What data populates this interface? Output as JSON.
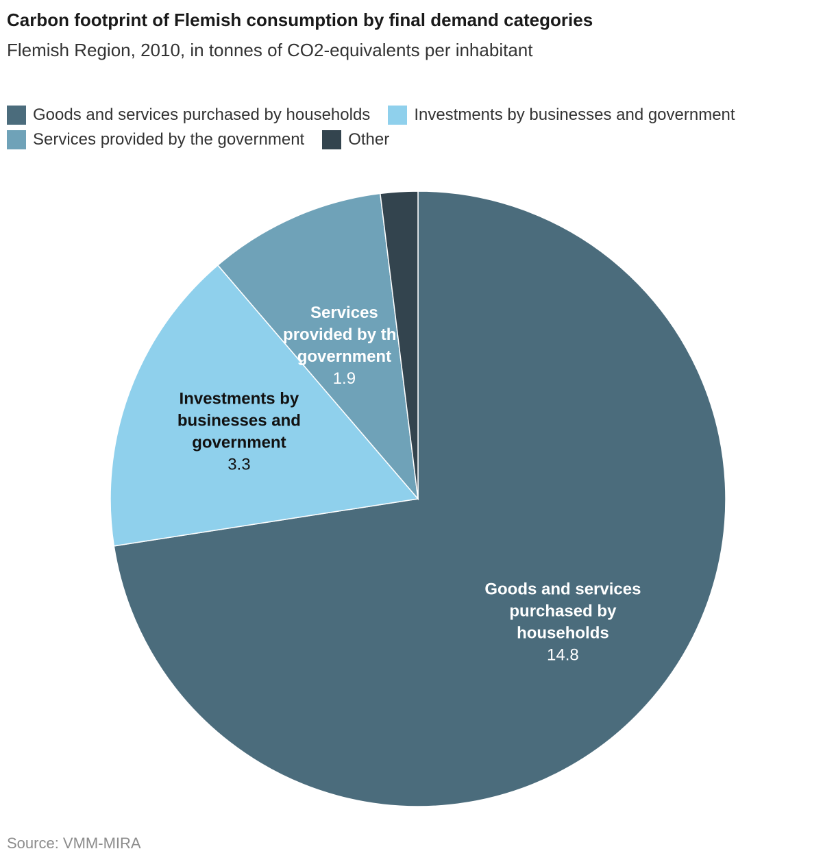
{
  "chart_data": {
    "type": "pie",
    "title": "Carbon footprint of Flemish consumption by final demand categories",
    "subtitle": "Flemish Region, 2010, in tonnes of CO2-equivalents per inhabitant",
    "source": "Source: VMM-MIRA",
    "legend_position": "top",
    "slices": [
      {
        "name": "Goods and services purchased by households",
        "value": 14.8,
        "value_label": "14.8",
        "color": "#4b6c7c",
        "label_lines": [
          "Goods and services",
          "purchased by",
          "households"
        ],
        "label_color": "#ffffff"
      },
      {
        "name": "Investments by businesses and government",
        "value": 3.3,
        "value_label": "3.3",
        "color": "#8fd0ec",
        "label_lines": [
          "Investments by",
          "businesses and",
          "government"
        ],
        "label_color": "#111111"
      },
      {
        "name": "Services provided by the government",
        "value": 1.9,
        "value_label": "1.9",
        "color": "#6fa2b8",
        "label_lines": [
          "Services",
          "provided by the",
          "government"
        ],
        "label_color": "#ffffff"
      },
      {
        "name": "Other",
        "value": 0.4,
        "value_label": "",
        "color": "#33444e",
        "label_lines": [],
        "label_color": "#ffffff"
      }
    ]
  }
}
